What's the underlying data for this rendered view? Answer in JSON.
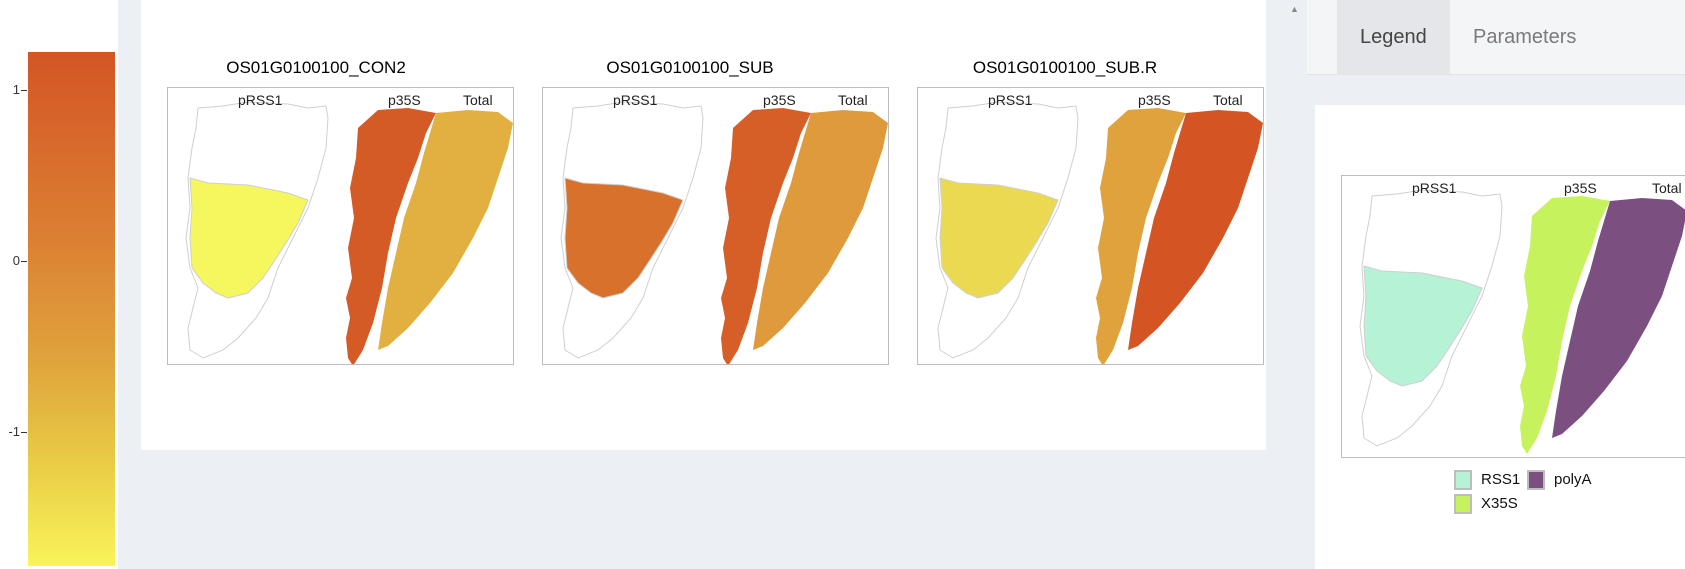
{
  "colorbar": {
    "ticks": [
      "1",
      "0",
      "-1"
    ],
    "colors": [
      "#d45525",
      "#db7e32",
      "#dfa33c",
      "#e9cc45",
      "#f9f45a"
    ]
  },
  "plots": [
    {
      "title": "OS01G0100100_CON2",
      "labels": {
        "prss1": "pRSS1",
        "p35s": "p35S",
        "total": "Total"
      },
      "fills": {
        "prss1": "#f6f65e",
        "p35s": "#d55b26",
        "total": "#e2b040"
      }
    },
    {
      "title": "OS01G0100100_SUB",
      "labels": {
        "prss1": "pRSS1",
        "p35s": "p35S",
        "total": "Total"
      },
      "fills": {
        "prss1": "#d8712b",
        "p35s": "#d55f27",
        "total": "#df9a3c"
      }
    },
    {
      "title": "OS01G0100100_SUB.R",
      "labels": {
        "prss1": "pRSS1",
        "p35s": "p35S",
        "total": "Total"
      },
      "fills": {
        "prss1": "#ebd952",
        "p35s": "#e0a23d",
        "total": "#d45424"
      }
    }
  ],
  "sidebar": {
    "tabs": [
      {
        "label": "Legend",
        "active": true
      },
      {
        "label": "Parameters",
        "active": false
      }
    ],
    "legend_plot": {
      "labels": {
        "prss1": "pRSS1",
        "p35s": "p35S",
        "total": "Total"
      },
      "fills": {
        "prss1": "#b5f2d6",
        "p35s": "#c6f25e",
        "total": "#7b5080"
      }
    },
    "legend_entries": [
      {
        "label": "RSS1",
        "color": "#b5f2d6"
      },
      {
        "label": "polyA",
        "color": "#7b5080"
      },
      {
        "label": "X35S",
        "color": "#c6f25e"
      }
    ]
  }
}
